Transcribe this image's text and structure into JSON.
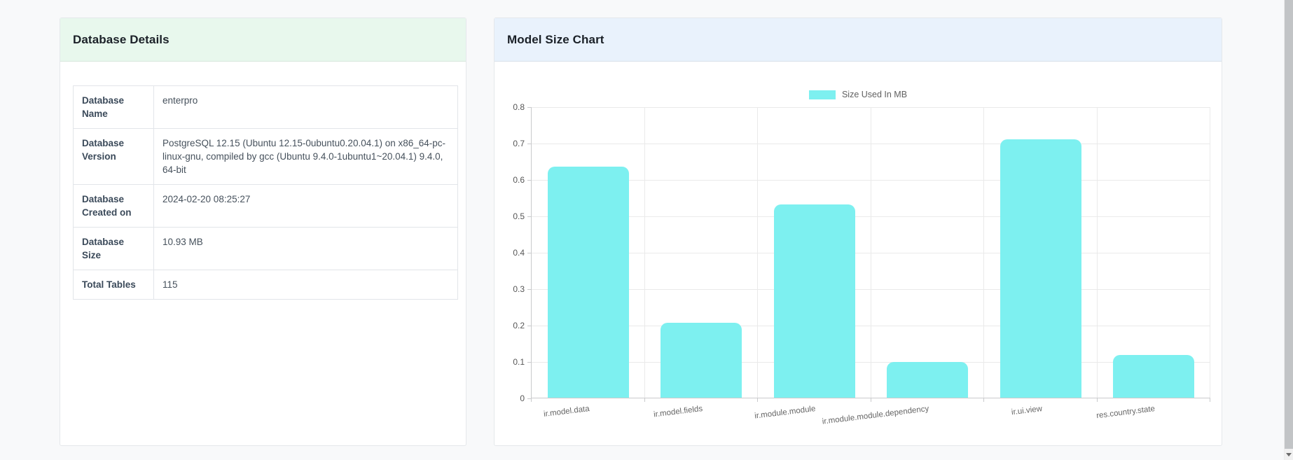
{
  "page": {
    "background": "#f8f9fa"
  },
  "database_card": {
    "title": "Database Details",
    "header_bg": "#e8f8ed",
    "rows": [
      {
        "label": "Database Name",
        "value": "enterpro"
      },
      {
        "label": "Database Version",
        "value": "PostgreSQL 12.15 (Ubuntu 12.15-0ubuntu0.20.04.1) on x86_64-pc-linux-gnu, compiled by gcc (Ubuntu 9.4.0-1ubuntu1~20.04.1) 9.4.0, 64-bit"
      },
      {
        "label": "Database Created on",
        "value": "2024-02-20 08:25:27"
      },
      {
        "label": "Database Size",
        "value": "10.93 MB"
      },
      {
        "label": "Total Tables",
        "value": "115"
      }
    ]
  },
  "chart_card": {
    "title": "Model Size Chart",
    "header_bg": "#e9f2fc"
  },
  "chart_data": {
    "type": "bar",
    "title": "Model Size Chart",
    "legend": [
      {
        "label": "Size Used In MB",
        "color": "#7df0f0"
      }
    ],
    "legend_position": "top-center",
    "categories": [
      "ir.model.data",
      "ir.model.fields",
      "ir.module.module",
      "ir.module.module.dependency",
      "ir.ui.view",
      "res.country.state"
    ],
    "values": [
      0.635,
      0.205,
      0.53,
      0.098,
      0.71,
      0.118
    ],
    "xlabel": "",
    "ylabel": "",
    "ylim": [
      0,
      0.8
    ],
    "ytick_step": 0.1,
    "ytick_labels": [
      "0",
      "0.1",
      "0.2",
      "0.3",
      "0.4",
      "0.5",
      "0.6",
      "0.7",
      "0.8"
    ],
    "grid": true,
    "bar_color": "#7df0f0"
  }
}
